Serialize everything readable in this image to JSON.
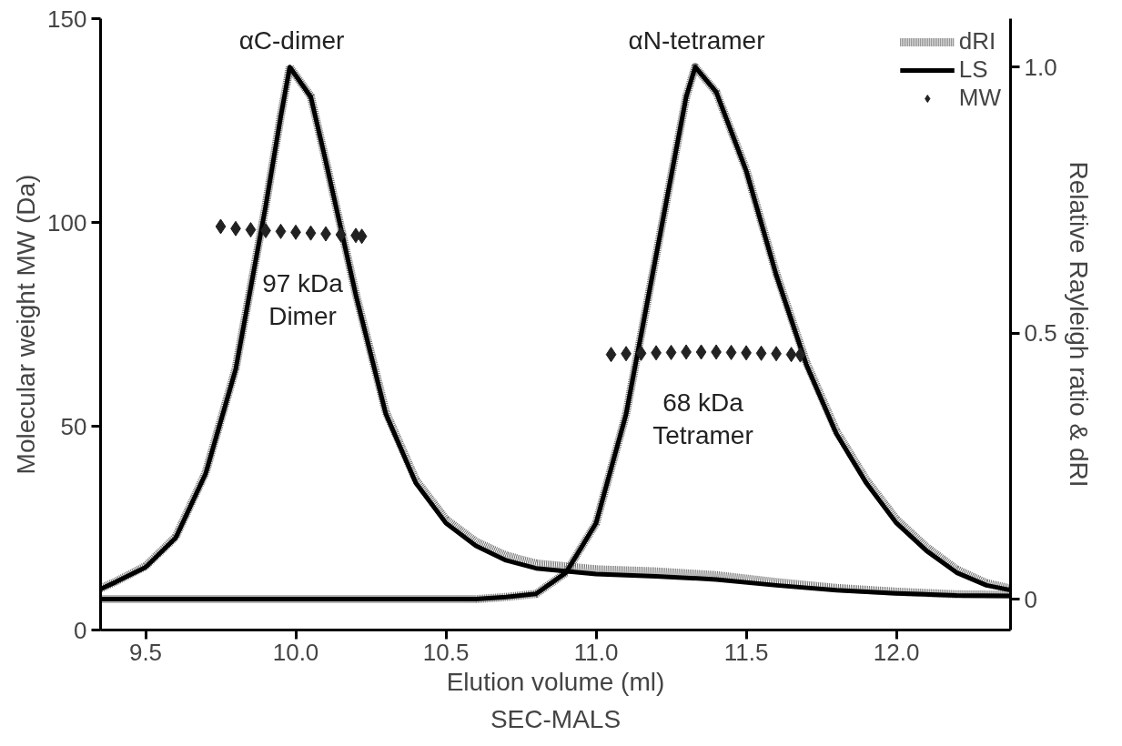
{
  "chart_data": {
    "type": "line",
    "xlabel": "Elution volume (ml)",
    "ylabel": "Molecular weight MW (Da)",
    "y2label": "Relative Rayleigh ratio & dRI",
    "xlim": [
      9.35,
      12.38
    ],
    "ylim": [
      0,
      150
    ],
    "y2lim": [
      -0.058,
      1.091
    ],
    "xticks": [
      9.5,
      {
        "value": 10,
        "label": "10.0"
      },
      10.5,
      {
        "value": 11,
        "label": "11.0"
      },
      11.5,
      {
        "value": 12,
        "label": "12.0"
      }
    ],
    "yticks": [
      0,
      50,
      100,
      150
    ],
    "y2ticks": [
      0,
      0.5,
      {
        "value": 1,
        "label": "1.0"
      }
    ],
    "grid": false,
    "legend": "top right",
    "series": [
      {
        "name": "dRI",
        "axis": "y2",
        "line_style": "dotted",
        "color": "#6e6e6e",
        "x": [
          9.35,
          9.4,
          9.5,
          9.6,
          9.7,
          9.8,
          9.9,
          9.95,
          9.98,
          10.05,
          10.1,
          10.2,
          10.3,
          10.4,
          10.5,
          10.6,
          10.7,
          10.8,
          11.0,
          11.2,
          11.4,
          11.6,
          11.8,
          12.0,
          12.2,
          12.38,
          null,
          9.35,
          10.6,
          10.7,
          10.8,
          10.9,
          11.0,
          11.1,
          11.2,
          11.3,
          11.33,
          11.4,
          11.5,
          11.6,
          11.7,
          11.8,
          11.9,
          12.0,
          12.1,
          12.2,
          12.3,
          12.38
        ],
        "values": [
          0.02,
          0.033,
          0.062,
          0.117,
          0.238,
          0.434,
          0.74,
          0.908,
          1.0,
          0.945,
          0.824,
          0.574,
          0.352,
          0.224,
          0.15,
          0.108,
          0.082,
          0.067,
          0.056,
          0.052,
          0.045,
          0.032,
          0.021,
          0.014,
          0.009,
          0.008,
          null,
          0.0,
          0.0,
          0.004,
          0.01,
          0.05,
          0.143,
          0.348,
          0.646,
          0.944,
          1.0,
          0.953,
          0.807,
          0.612,
          0.445,
          0.316,
          0.224,
          0.15,
          0.098,
          0.056,
          0.03,
          0.02
        ]
      },
      {
        "name": "LS",
        "axis": "y2",
        "line_style": "solid",
        "color": "#000000",
        "x": [
          9.35,
          9.4,
          9.5,
          9.6,
          9.7,
          9.8,
          9.9,
          9.95,
          9.98,
          10.05,
          10.1,
          10.2,
          10.3,
          10.4,
          10.5,
          10.6,
          10.7,
          10.8,
          11.0,
          11.2,
          11.4,
          11.6,
          11.8,
          12.0,
          12.2,
          12.38,
          null,
          9.35,
          10.6,
          10.7,
          10.8,
          10.9,
          11.0,
          11.1,
          11.2,
          11.3,
          11.33,
          11.4,
          11.5,
          11.6,
          11.7,
          11.8,
          11.9,
          12.0,
          12.1,
          12.2,
          12.3,
          12.38
        ],
        "values": [
          0.019,
          0.032,
          0.06,
          0.115,
          0.236,
          0.432,
          0.739,
          0.907,
          1.0,
          0.944,
          0.823,
          0.572,
          0.348,
          0.218,
          0.143,
          0.1,
          0.073,
          0.058,
          0.047,
          0.043,
          0.037,
          0.026,
          0.017,
          0.011,
          0.007,
          0.006,
          null,
          0.0,
          0.0,
          0.004,
          0.01,
          0.05,
          0.143,
          0.348,
          0.646,
          0.944,
          1.0,
          0.953,
          0.805,
          0.609,
          0.441,
          0.311,
          0.218,
          0.143,
          0.091,
          0.05,
          0.026,
          0.017
        ]
      },
      {
        "name": "MW",
        "type": "scatter",
        "axis": "y",
        "marker": "diamond",
        "color": "#222222",
        "x": [
          9.75,
          9.8,
          9.85,
          9.9,
          9.95,
          10.0,
          10.05,
          10.1,
          10.15,
          10.2,
          10.22,
          11.05,
          11.1,
          11.15,
          11.2,
          11.25,
          11.3,
          11.35,
          11.4,
          11.45,
          11.5,
          11.55,
          11.6,
          11.65,
          11.68
        ],
        "values": [
          99,
          98.5,
          98.2,
          98,
          97.8,
          97.6,
          97.4,
          97.2,
          97,
          96.8,
          96.6,
          67.6,
          67.8,
          67.9,
          68,
          68.1,
          68.2,
          68.2,
          68.2,
          68.1,
          68,
          67.9,
          67.8,
          67.6,
          67.5
        ]
      }
    ],
    "annotations": [
      "αC-dimer",
      "αN-tetramer",
      "97 kDa\nDimer",
      "68 kDa\nTetramer",
      "SEC-MALS"
    ]
  }
}
